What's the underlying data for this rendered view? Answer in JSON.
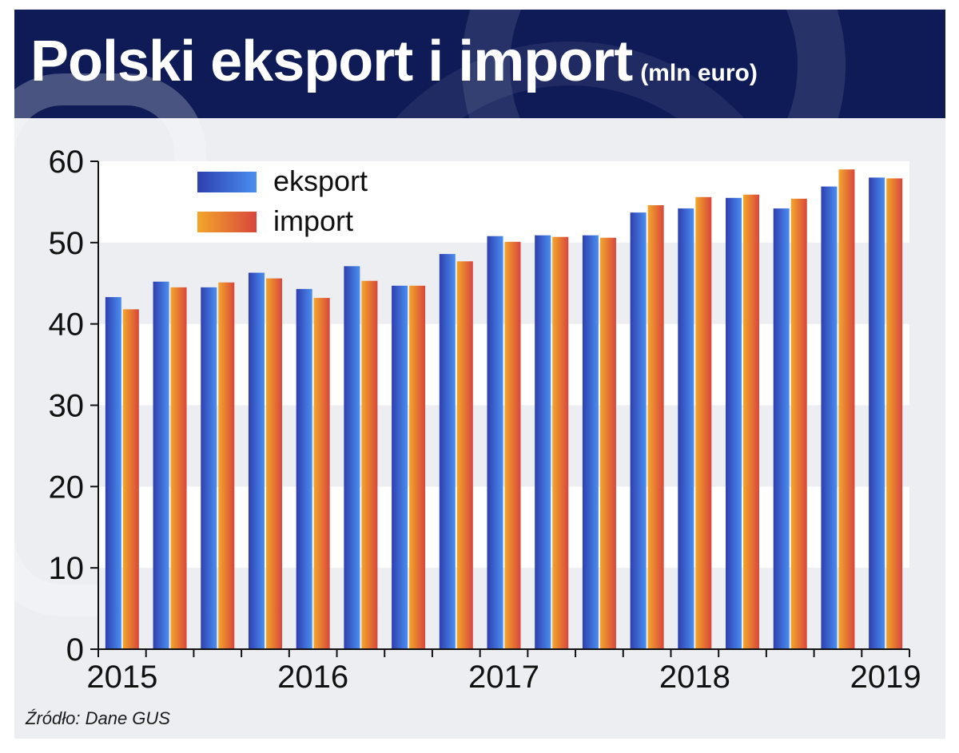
{
  "header": {
    "title": "Polski eksport i  import",
    "unit": "(mln euro)"
  },
  "source": "Źródło: Dane GUS",
  "colors": {
    "header_bg": "#0e1b57",
    "panel_bg": "#edeef2",
    "eksport_dark": "#2f3fb0",
    "eksport_light": "#4a8ff0",
    "import_dark": "#f2a62a",
    "import_light": "#d9463c"
  },
  "chart_data": {
    "type": "bar",
    "categories": [
      "2015",
      "",
      "",
      "",
      "2016",
      "",
      "",
      "",
      "2017",
      "",
      "",
      "",
      "2018",
      "",
      "",
      "",
      "2019"
    ],
    "series": [
      {
        "name": "eksport",
        "values": [
          43.3,
          45.2,
          44.5,
          46.3,
          44.3,
          47.1,
          44.7,
          48.6,
          50.8,
          50.9,
          50.9,
          53.7,
          54.2,
          55.5,
          54.2,
          56.9,
          58.0
        ]
      },
      {
        "name": "import",
        "values": [
          41.8,
          44.5,
          45.1,
          45.6,
          43.2,
          45.3,
          44.7,
          47.7,
          50.1,
          50.7,
          50.6,
          54.6,
          55.6,
          55.9,
          55.4,
          59.0,
          57.9
        ]
      }
    ],
    "x_tick_labels": [
      "2015",
      "2016",
      "2017",
      "2018",
      "2019"
    ],
    "y_ticks": [
      "0",
      "10",
      "20",
      "30",
      "40",
      "50",
      "60"
    ],
    "ylim": [
      0,
      60
    ],
    "grid": "alternating horizontal bands",
    "legend": "top-left"
  }
}
